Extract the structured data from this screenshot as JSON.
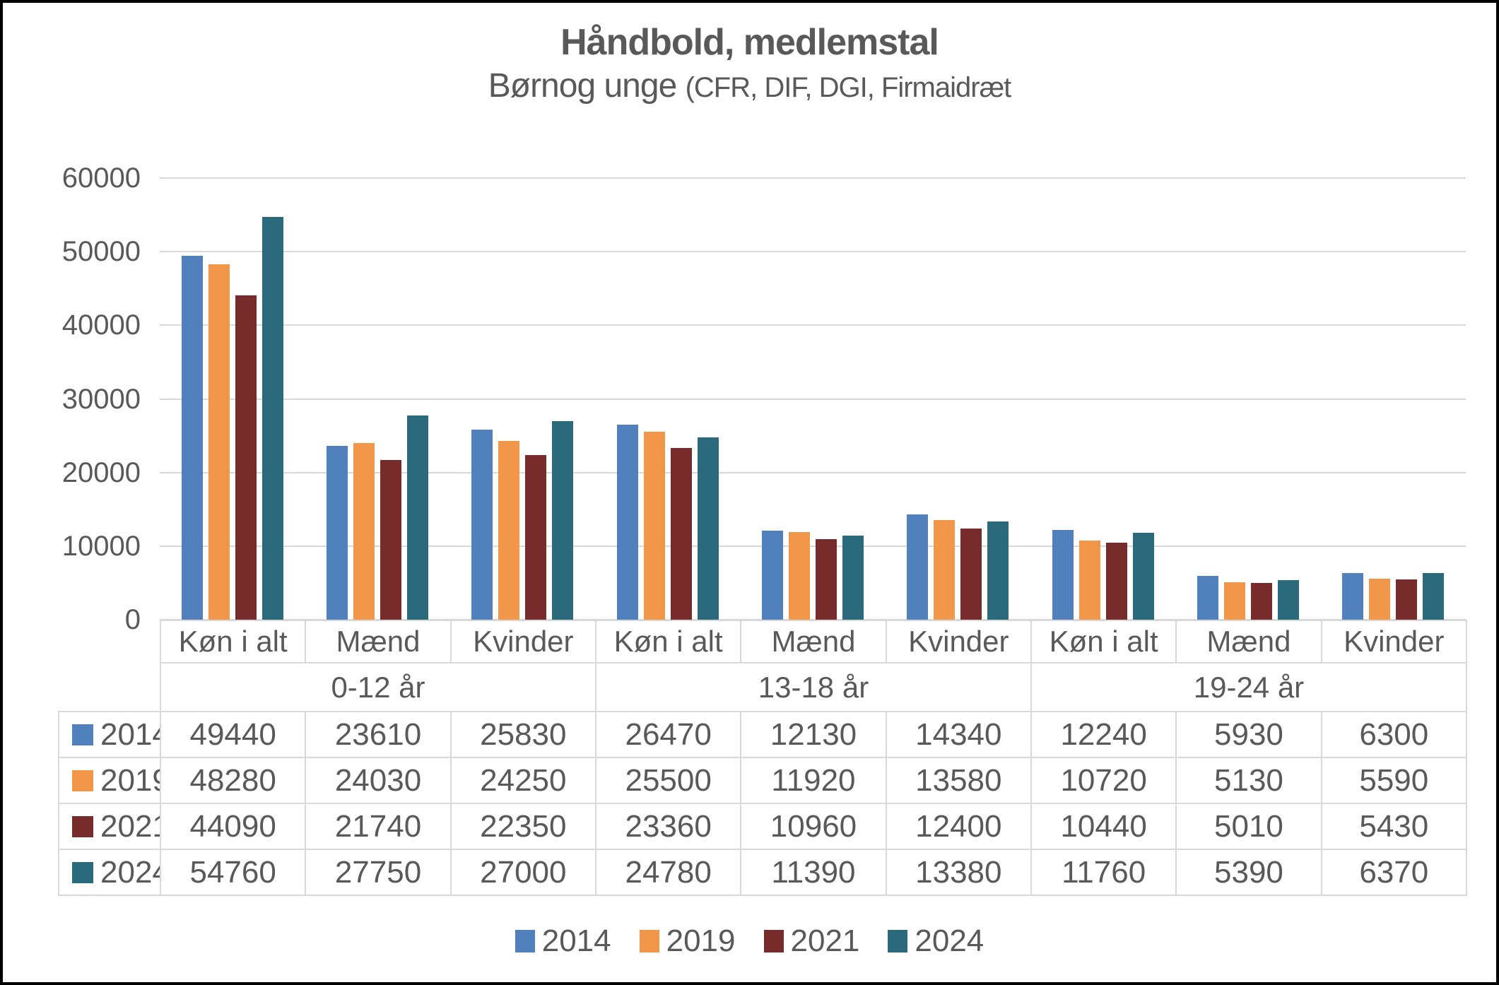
{
  "title": "Håndbold, medlemstal",
  "subtitle": {
    "main": "Børnog unge ",
    "paren": "(CFR, DIF, DGI, Firmaidræt"
  },
  "colors": {
    "text": "#595959",
    "grid": "#D9D9D9",
    "frame": "#000000",
    "series_2014": "#5081BC",
    "series_2019": "#F2974A",
    "series_2021": "#772B2B",
    "series_2024": "#2A6A7C"
  },
  "chart_data": {
    "type": "bar",
    "title": "Håndbold, medlemstal",
    "subtitle": "Børnog unge (CFR, DIF, DGI, Firmaidræt",
    "categories": [
      "Køn i alt",
      "Mænd",
      "Kvinder",
      "Køn i alt",
      "Mænd",
      "Kvinder",
      "Køn i alt",
      "Mænd",
      "Kvinder"
    ],
    "group_labels": [
      {
        "label": "0-12 år",
        "span": 3
      },
      {
        "label": "13-18 år",
        "span": 3
      },
      {
        "label": "19-24 år",
        "span": 3
      }
    ],
    "series": [
      {
        "name": "2014",
        "color": "#5081BC",
        "values": [
          49440,
          23610,
          25830,
          26470,
          12130,
          14340,
          12240,
          5930,
          6300
        ]
      },
      {
        "name": "2019",
        "color": "#F2974A",
        "values": [
          48280,
          24030,
          24250,
          25500,
          11920,
          13580,
          10720,
          5130,
          5590
        ]
      },
      {
        "name": "2021",
        "color": "#772B2B",
        "values": [
          44090,
          21740,
          22350,
          23360,
          10960,
          12400,
          10440,
          5010,
          5430
        ]
      },
      {
        "name": "2024",
        "color": "#2A6A7C",
        "values": [
          54760,
          27750,
          27000,
          24780,
          11390,
          13380,
          11760,
          5390,
          6370
        ]
      }
    ],
    "xlabel": "",
    "ylabel": "",
    "ylim": [
      0,
      60000
    ],
    "yticks": [
      0,
      10000,
      20000,
      30000,
      40000,
      50000,
      60000
    ],
    "grid": true,
    "legend_position": "bottom",
    "data_table_shown": true
  }
}
